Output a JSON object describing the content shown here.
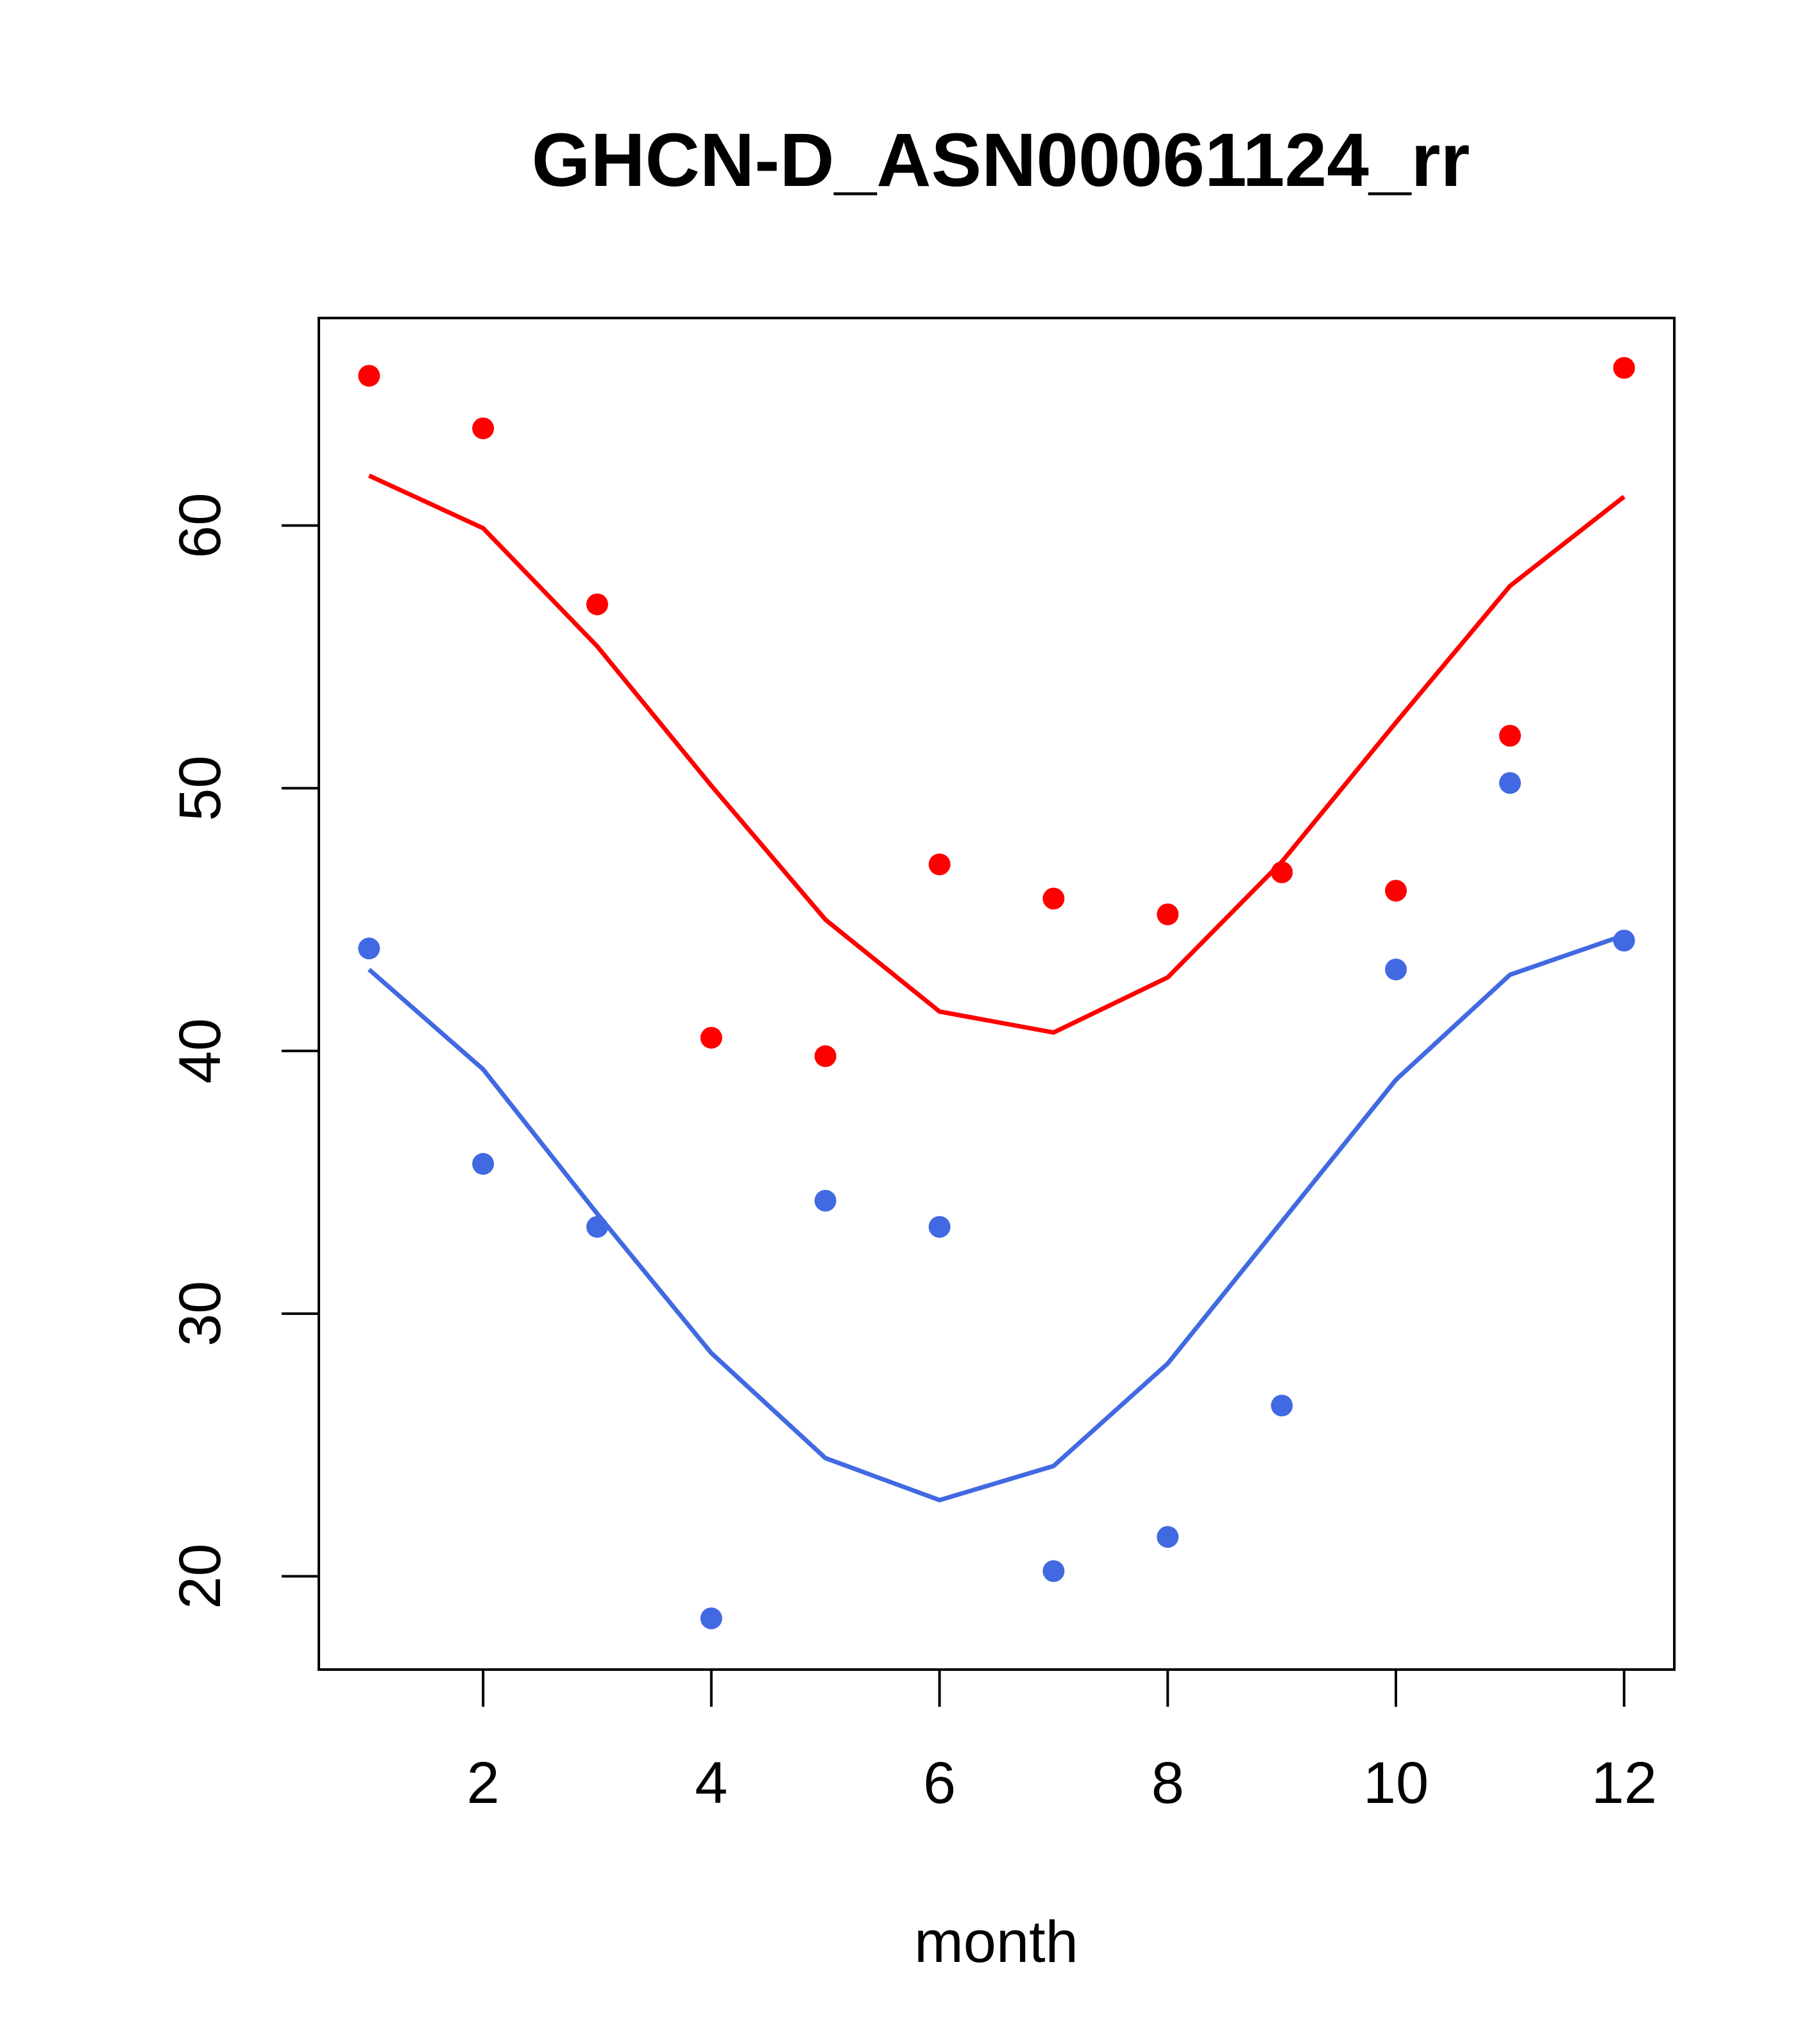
{
  "chart_data": {
    "type": "scatter",
    "title": "GHCN-D_ASN00061124_rr",
    "xlabel": "month",
    "ylabel": "",
    "xlim": [
      0.56,
      12.44
    ],
    "ylim": [
      16.45,
      67.9
    ],
    "x_ticks": [
      2,
      4,
      6,
      8,
      10,
      12
    ],
    "y_ticks": [
      20,
      30,
      40,
      50,
      60
    ],
    "x_tick_labels": [
      "2",
      "4",
      "6",
      "8",
      "10",
      "12"
    ],
    "y_tick_labels": [
      "20",
      "30",
      "40",
      "50",
      "60"
    ],
    "grid": false,
    "legend": "none",
    "series": [
      {
        "color": "#ff0000",
        "points_x": [
          1,
          2,
          3,
          4,
          5,
          6,
          7,
          8,
          9,
          10,
          11,
          12
        ],
        "points_y": [
          65.7,
          63.7,
          57.0,
          40.5,
          39.8,
          47.1,
          45.8,
          45.2,
          46.8,
          46.1,
          52.0,
          66.0
        ],
        "line_x": [
          1,
          2,
          3,
          4,
          5,
          6,
          7,
          8,
          9,
          10,
          11,
          12
        ],
        "line_y": [
          61.9,
          59.9,
          55.4,
          50.1,
          45.0,
          41.5,
          40.7,
          42.8,
          47.2,
          52.5,
          57.7,
          61.1
        ]
      },
      {
        "color": "#4169e1",
        "points_x": [
          1,
          2,
          3,
          4,
          5,
          6,
          7,
          8,
          9,
          10,
          11,
          12
        ],
        "points_y": [
          43.9,
          35.7,
          33.3,
          18.4,
          34.3,
          33.3,
          20.2,
          21.5,
          26.5,
          43.1,
          50.2,
          44.2
        ],
        "line_x": [
          1,
          2,
          3,
          4,
          5,
          6,
          7,
          8,
          9,
          10,
          11,
          12
        ],
        "line_y": [
          43.1,
          39.3,
          33.8,
          28.5,
          24.5,
          22.9,
          24.2,
          28.1,
          33.5,
          38.9,
          42.9,
          44.4
        ]
      }
    ]
  }
}
